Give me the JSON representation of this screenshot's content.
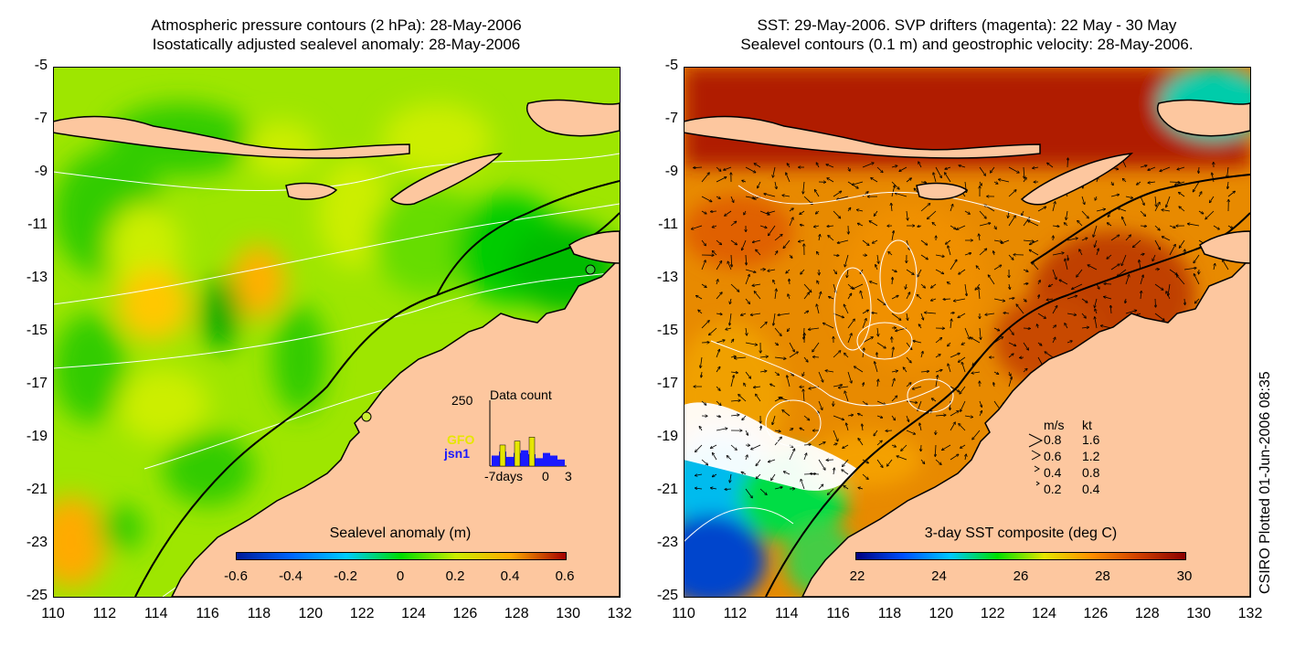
{
  "left_panel": {
    "title_line1": "Atmospheric pressure contours (2 hPa): 28-May-2006",
    "title_line2": "Isostatically adjusted sealevel anomaly: 28-May-2006",
    "colorbar": {
      "title": "Sealevel anomaly (m)",
      "labels": [
        "-0.6",
        "-0.4",
        "-0.2",
        "0",
        "0.2",
        "0.4",
        "0.6"
      ],
      "colors": [
        "#001a9a",
        "#0066ff",
        "#00ccff",
        "#00dd00",
        "#ccee00",
        "#ffaa00",
        "#a50000"
      ]
    },
    "data_count": {
      "title": "Data count",
      "ymax_label": "250",
      "x_labels": [
        "-7days",
        "0",
        "3"
      ],
      "missions": [
        {
          "name": "GFO",
          "color": "#e6e600"
        },
        {
          "name": "jsn1",
          "color": "#1a1aff"
        }
      ],
      "bars_jsn1": [
        40,
        55,
        35,
        50,
        60,
        45,
        30,
        50,
        40,
        25
      ],
      "bars_gfo": [
        0,
        80,
        0,
        95,
        0,
        110,
        0,
        0,
        0,
        0
      ]
    },
    "land_color": "#fdc79f",
    "ocean_base_color": "#66dd00"
  },
  "right_panel": {
    "title_line1": "SST: 29-May-2006. SVP drifters (magenta): 22 May - 30 May",
    "title_line2": "Sealevel contours (0.1 m) and geostrophic velocity: 28-May-2006.",
    "colorbar": {
      "title": "3-day SST composite (deg C)",
      "labels": [
        "22",
        "24",
        "26",
        "28",
        "30"
      ],
      "colors": [
        "#000080",
        "#0050ff",
        "#00c8ff",
        "#00e000",
        "#e6e600",
        "#ff9000",
        "#d04000",
        "#8b0000"
      ]
    },
    "velocity_legend": {
      "header_ms": "m/s",
      "header_kt": "kt",
      "rows": [
        {
          "ms": "0.8",
          "kt": "1.6"
        },
        {
          "ms": "0.6",
          "kt": "1.2"
        },
        {
          "ms": "0.4",
          "kt": "0.8"
        },
        {
          "ms": "0.2",
          "kt": "0.4"
        }
      ]
    },
    "land_color": "#fdc79f",
    "ocean_base_color": "#e07a00"
  },
  "axes": {
    "lat_labels": [
      "-5",
      "-7",
      "-9",
      "-11",
      "-13",
      "-15",
      "-17",
      "-19",
      "-21",
      "-23",
      "-25"
    ],
    "lon_labels": [
      "110",
      "112",
      "114",
      "116",
      "118",
      "120",
      "122",
      "124",
      "126",
      "128",
      "130",
      "132"
    ],
    "lat_range": [
      -25,
      -5
    ],
    "lon_range": [
      110,
      132
    ]
  },
  "side_label": "CSIRO Plotted 01-Jun-2006 08:35"
}
